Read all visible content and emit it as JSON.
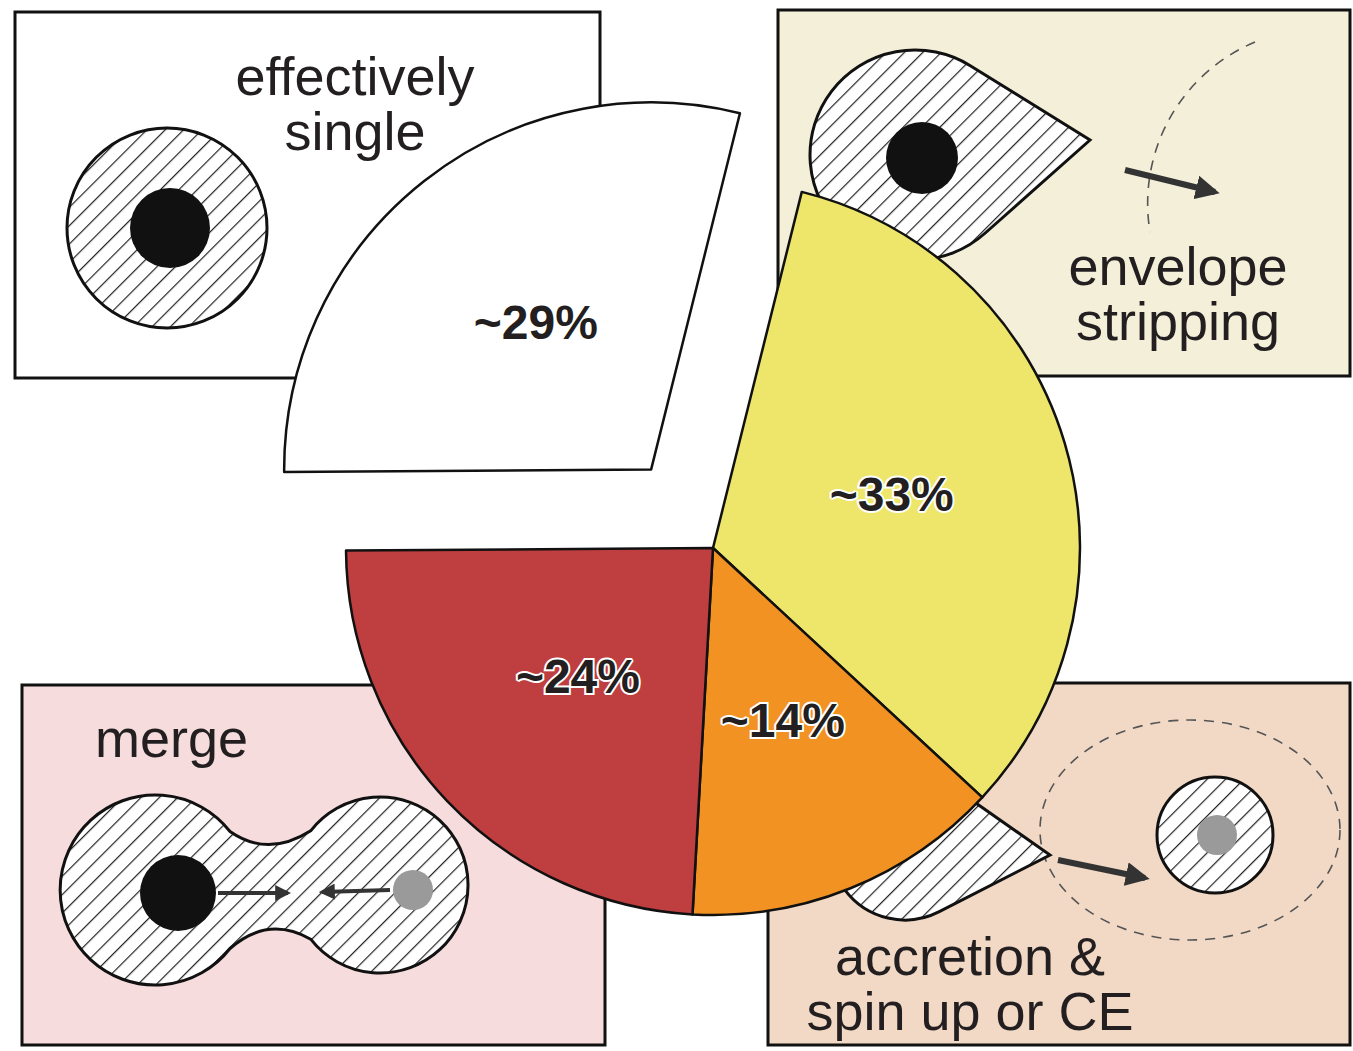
{
  "chart_data": {
    "type": "pie",
    "categories": [
      "envelope stripping",
      "accretion & spin up or CE",
      "merge",
      "effectively single"
    ],
    "values": [
      33,
      14,
      24,
      29
    ],
    "value_labels": [
      "~33%",
      "~14%",
      "~24%",
      "~29%"
    ],
    "colors": [
      "#ede66a",
      "#f29222",
      "#bf3e3f",
      "#ffffff"
    ],
    "data_labels": true
  }
}
